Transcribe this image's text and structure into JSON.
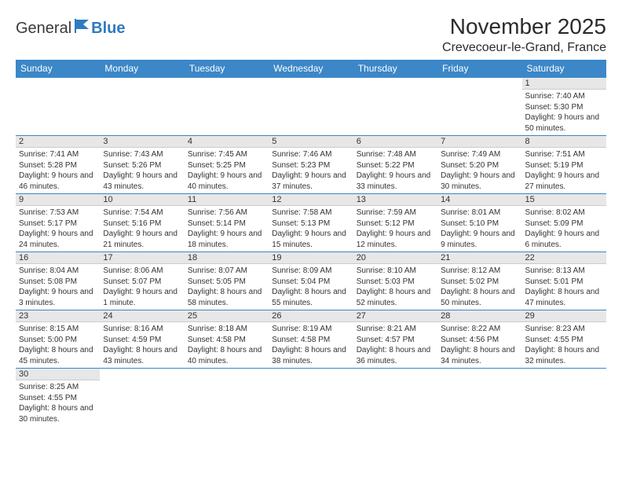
{
  "logo": {
    "text1": "General",
    "text2": "Blue"
  },
  "header": {
    "title": "November 2025",
    "location": "Crevecoeur-le-Grand, France"
  },
  "day_headers": [
    "Sunday",
    "Monday",
    "Tuesday",
    "Wednesday",
    "Thursday",
    "Friday",
    "Saturday"
  ],
  "colors": {
    "header_bg": "#3b87c8",
    "header_fg": "#ffffff",
    "daynum_bg": "#e7e7e7",
    "border": "#3b87c8"
  },
  "grid": [
    [
      {
        "empty": true
      },
      {
        "empty": true
      },
      {
        "empty": true
      },
      {
        "empty": true
      },
      {
        "empty": true
      },
      {
        "empty": true
      },
      {
        "day": "1",
        "sunrise": "Sunrise: 7:40 AM",
        "sunset": "Sunset: 5:30 PM",
        "daylight": "Daylight: 9 hours and 50 minutes."
      }
    ],
    [
      {
        "day": "2",
        "sunrise": "Sunrise: 7:41 AM",
        "sunset": "Sunset: 5:28 PM",
        "daylight": "Daylight: 9 hours and 46 minutes."
      },
      {
        "day": "3",
        "sunrise": "Sunrise: 7:43 AM",
        "sunset": "Sunset: 5:26 PM",
        "daylight": "Daylight: 9 hours and 43 minutes."
      },
      {
        "day": "4",
        "sunrise": "Sunrise: 7:45 AM",
        "sunset": "Sunset: 5:25 PM",
        "daylight": "Daylight: 9 hours and 40 minutes."
      },
      {
        "day": "5",
        "sunrise": "Sunrise: 7:46 AM",
        "sunset": "Sunset: 5:23 PM",
        "daylight": "Daylight: 9 hours and 37 minutes."
      },
      {
        "day": "6",
        "sunrise": "Sunrise: 7:48 AM",
        "sunset": "Sunset: 5:22 PM",
        "daylight": "Daylight: 9 hours and 33 minutes."
      },
      {
        "day": "7",
        "sunrise": "Sunrise: 7:49 AM",
        "sunset": "Sunset: 5:20 PM",
        "daylight": "Daylight: 9 hours and 30 minutes."
      },
      {
        "day": "8",
        "sunrise": "Sunrise: 7:51 AM",
        "sunset": "Sunset: 5:19 PM",
        "daylight": "Daylight: 9 hours and 27 minutes."
      }
    ],
    [
      {
        "day": "9",
        "sunrise": "Sunrise: 7:53 AM",
        "sunset": "Sunset: 5:17 PM",
        "daylight": "Daylight: 9 hours and 24 minutes."
      },
      {
        "day": "10",
        "sunrise": "Sunrise: 7:54 AM",
        "sunset": "Sunset: 5:16 PM",
        "daylight": "Daylight: 9 hours and 21 minutes."
      },
      {
        "day": "11",
        "sunrise": "Sunrise: 7:56 AM",
        "sunset": "Sunset: 5:14 PM",
        "daylight": "Daylight: 9 hours and 18 minutes."
      },
      {
        "day": "12",
        "sunrise": "Sunrise: 7:58 AM",
        "sunset": "Sunset: 5:13 PM",
        "daylight": "Daylight: 9 hours and 15 minutes."
      },
      {
        "day": "13",
        "sunrise": "Sunrise: 7:59 AM",
        "sunset": "Sunset: 5:12 PM",
        "daylight": "Daylight: 9 hours and 12 minutes."
      },
      {
        "day": "14",
        "sunrise": "Sunrise: 8:01 AM",
        "sunset": "Sunset: 5:10 PM",
        "daylight": "Daylight: 9 hours and 9 minutes."
      },
      {
        "day": "15",
        "sunrise": "Sunrise: 8:02 AM",
        "sunset": "Sunset: 5:09 PM",
        "daylight": "Daylight: 9 hours and 6 minutes."
      }
    ],
    [
      {
        "day": "16",
        "sunrise": "Sunrise: 8:04 AM",
        "sunset": "Sunset: 5:08 PM",
        "daylight": "Daylight: 9 hours and 3 minutes."
      },
      {
        "day": "17",
        "sunrise": "Sunrise: 8:06 AM",
        "sunset": "Sunset: 5:07 PM",
        "daylight": "Daylight: 9 hours and 1 minute."
      },
      {
        "day": "18",
        "sunrise": "Sunrise: 8:07 AM",
        "sunset": "Sunset: 5:05 PM",
        "daylight": "Daylight: 8 hours and 58 minutes."
      },
      {
        "day": "19",
        "sunrise": "Sunrise: 8:09 AM",
        "sunset": "Sunset: 5:04 PM",
        "daylight": "Daylight: 8 hours and 55 minutes."
      },
      {
        "day": "20",
        "sunrise": "Sunrise: 8:10 AM",
        "sunset": "Sunset: 5:03 PM",
        "daylight": "Daylight: 8 hours and 52 minutes."
      },
      {
        "day": "21",
        "sunrise": "Sunrise: 8:12 AM",
        "sunset": "Sunset: 5:02 PM",
        "daylight": "Daylight: 8 hours and 50 minutes."
      },
      {
        "day": "22",
        "sunrise": "Sunrise: 8:13 AM",
        "sunset": "Sunset: 5:01 PM",
        "daylight": "Daylight: 8 hours and 47 minutes."
      }
    ],
    [
      {
        "day": "23",
        "sunrise": "Sunrise: 8:15 AM",
        "sunset": "Sunset: 5:00 PM",
        "daylight": "Daylight: 8 hours and 45 minutes."
      },
      {
        "day": "24",
        "sunrise": "Sunrise: 8:16 AM",
        "sunset": "Sunset: 4:59 PM",
        "daylight": "Daylight: 8 hours and 43 minutes."
      },
      {
        "day": "25",
        "sunrise": "Sunrise: 8:18 AM",
        "sunset": "Sunset: 4:58 PM",
        "daylight": "Daylight: 8 hours and 40 minutes."
      },
      {
        "day": "26",
        "sunrise": "Sunrise: 8:19 AM",
        "sunset": "Sunset: 4:58 PM",
        "daylight": "Daylight: 8 hours and 38 minutes."
      },
      {
        "day": "27",
        "sunrise": "Sunrise: 8:21 AM",
        "sunset": "Sunset: 4:57 PM",
        "daylight": "Daylight: 8 hours and 36 minutes."
      },
      {
        "day": "28",
        "sunrise": "Sunrise: 8:22 AM",
        "sunset": "Sunset: 4:56 PM",
        "daylight": "Daylight: 8 hours and 34 minutes."
      },
      {
        "day": "29",
        "sunrise": "Sunrise: 8:23 AM",
        "sunset": "Sunset: 4:55 PM",
        "daylight": "Daylight: 8 hours and 32 minutes."
      }
    ],
    [
      {
        "day": "30",
        "sunrise": "Sunrise: 8:25 AM",
        "sunset": "Sunset: 4:55 PM",
        "daylight": "Daylight: 8 hours and 30 minutes."
      },
      {
        "empty": true
      },
      {
        "empty": true
      },
      {
        "empty": true
      },
      {
        "empty": true
      },
      {
        "empty": true
      },
      {
        "empty": true
      }
    ]
  ]
}
